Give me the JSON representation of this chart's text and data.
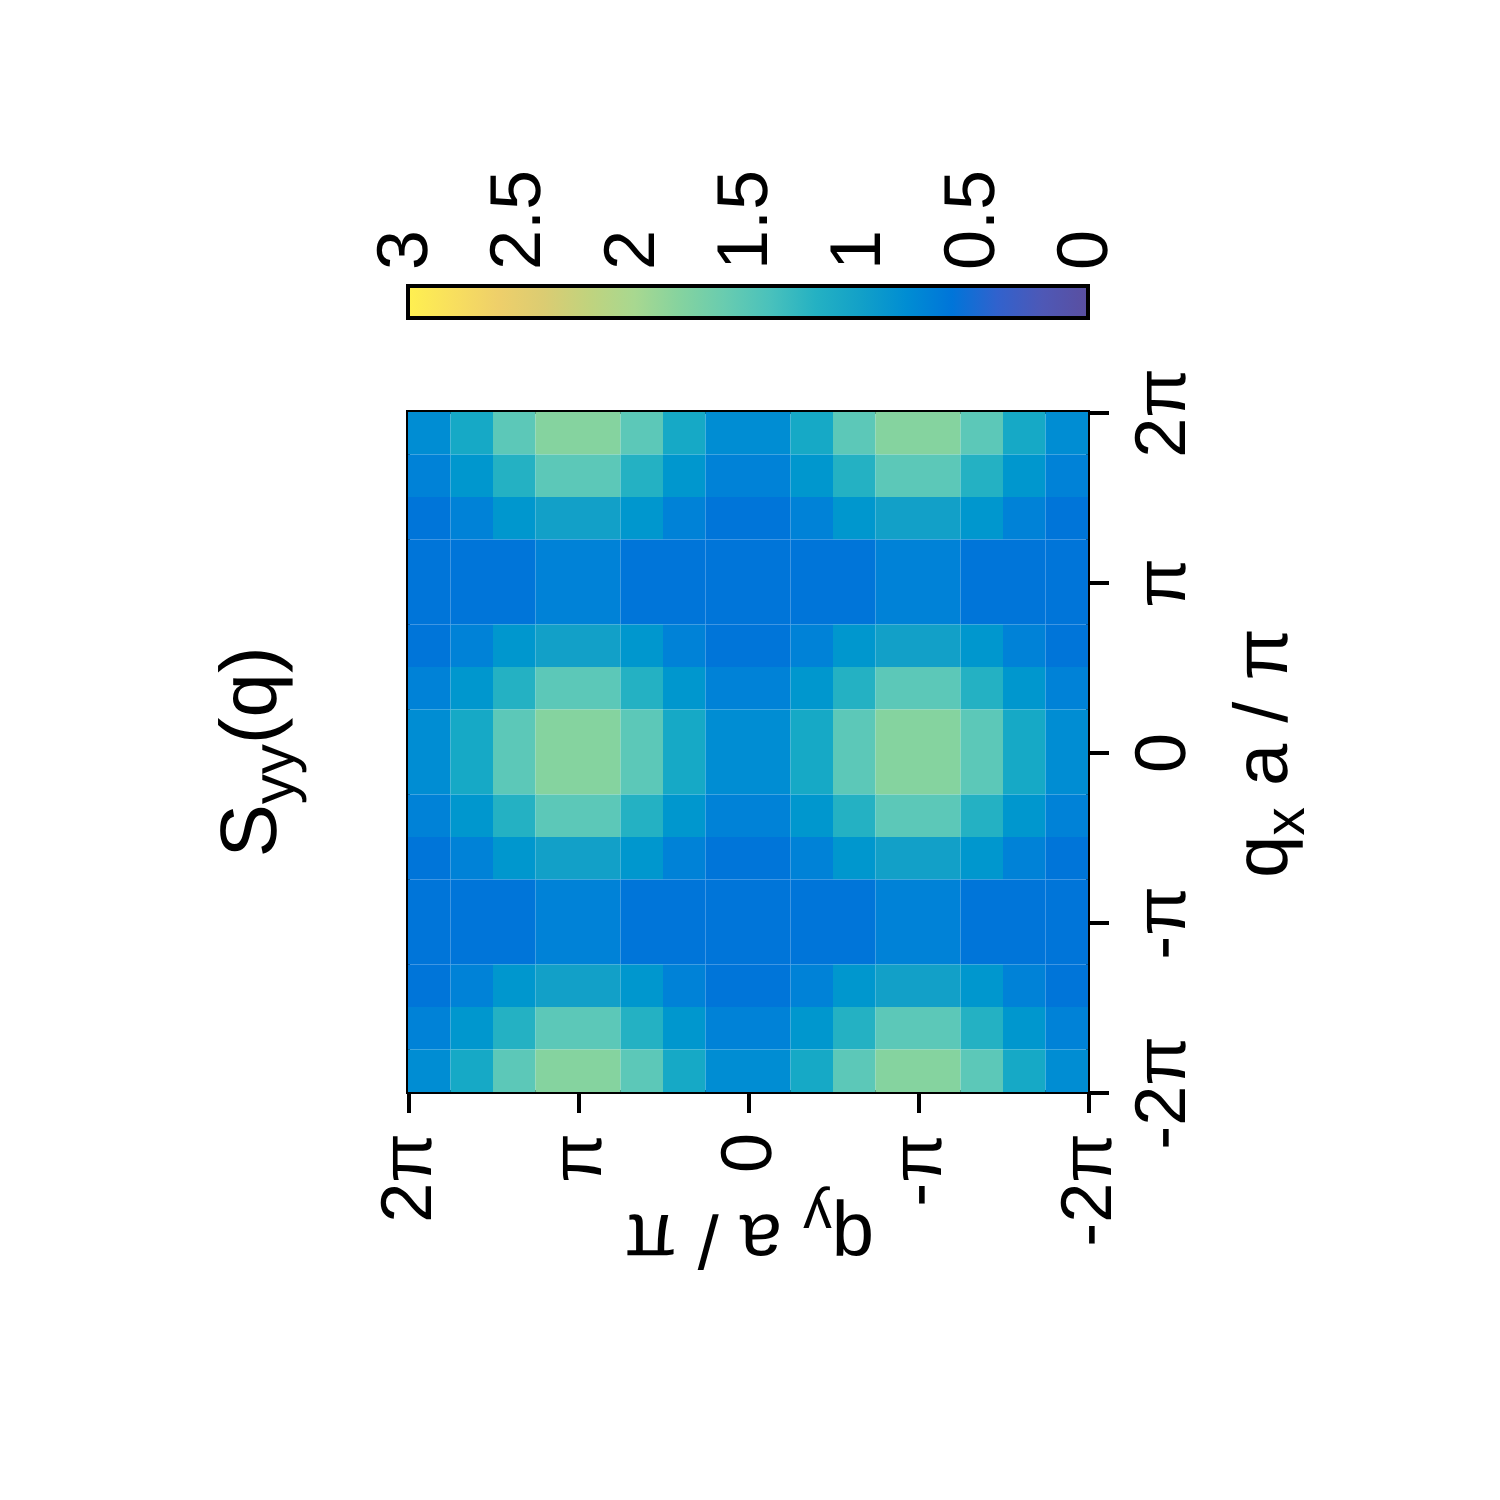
{
  "chart_data": {
    "type": "heatmap",
    "title": "S$_{yy}$(q)",
    "xlabel": "q$_{y}$ a / π",
    "ylabel": "q$_{x}$ a / π",
    "xlim": [
      6.283,
      -6.283
    ],
    "ylim": [
      -6.283,
      6.283
    ],
    "xticks": [
      {
        "value": 6.283,
        "label": "2π"
      },
      {
        "value": 3.142,
        "label": "π"
      },
      {
        "value": 0,
        "label": "0"
      },
      {
        "value": -3.142,
        "label": "-π"
      },
      {
        "value": -6.283,
        "label": "-2π"
      }
    ],
    "yticks": [
      {
        "value": -6.283,
        "label": "-2π"
      },
      {
        "value": -3.142,
        "label": "-π"
      },
      {
        "value": 0,
        "label": "0"
      },
      {
        "value": 3.142,
        "label": "π"
      },
      {
        "value": 6.283,
        "label": "2π"
      }
    ],
    "cticks": [
      0,
      0.5,
      1,
      1.5,
      2,
      2.5,
      3
    ],
    "colors": [
      "#5a4fa0",
      "#0868d8",
      "#12a0c8",
      "#5cc8b8",
      "#a8d890",
      "#e8c870",
      "#fff050"
    ],
    "clim": [
      0,
      3
    ],
    "cells": [
      [
        0.8,
        1.1,
        1.5,
        1.8,
        1.8,
        1.5,
        1.1,
        0.8,
        0.8,
        1.1,
        1.5,
        1.8,
        1.8,
        1.5,
        1.1,
        0.8
      ],
      [
        0.7,
        0.9,
        1.2,
        1.5,
        1.5,
        1.2,
        0.9,
        0.7,
        0.7,
        0.9,
        1.2,
        1.5,
        1.5,
        1.2,
        0.9,
        0.7
      ],
      [
        0.6,
        0.7,
        0.9,
        1.0,
        1.0,
        0.9,
        0.7,
        0.6,
        0.6,
        0.7,
        0.9,
        1.0,
        1.0,
        0.9,
        0.7,
        0.6
      ],
      [
        0.6,
        0.6,
        0.6,
        0.7,
        0.7,
        0.6,
        0.6,
        0.6,
        0.6,
        0.6,
        0.6,
        0.7,
        0.7,
        0.6,
        0.6,
        0.6
      ],
      [
        0.6,
        0.6,
        0.6,
        0.7,
        0.7,
        0.6,
        0.6,
        0.6,
        0.6,
        0.6,
        0.6,
        0.7,
        0.7,
        0.6,
        0.6,
        0.6
      ],
      [
        0.6,
        0.7,
        0.9,
        1.0,
        1.0,
        0.9,
        0.7,
        0.6,
        0.6,
        0.7,
        0.9,
        1.0,
        1.0,
        0.9,
        0.7,
        0.6
      ],
      [
        0.7,
        0.9,
        1.2,
        1.5,
        1.5,
        1.2,
        0.9,
        0.7,
        0.7,
        0.9,
        1.2,
        1.5,
        1.5,
        1.2,
        0.9,
        0.7
      ],
      [
        0.8,
        1.1,
        1.5,
        1.8,
        1.8,
        1.5,
        1.1,
        0.8,
        0.8,
        1.1,
        1.5,
        1.8,
        1.8,
        1.5,
        1.1,
        0.8
      ],
      [
        0.8,
        1.1,
        1.5,
        1.8,
        1.8,
        1.5,
        1.1,
        0.8,
        0.8,
        1.1,
        1.5,
        1.8,
        1.8,
        1.5,
        1.1,
        0.8
      ],
      [
        0.7,
        0.9,
        1.2,
        1.5,
        1.5,
        1.2,
        0.9,
        0.7,
        0.7,
        0.9,
        1.2,
        1.5,
        1.5,
        1.2,
        0.9,
        0.7
      ],
      [
        0.6,
        0.7,
        0.9,
        1.0,
        1.0,
        0.9,
        0.7,
        0.6,
        0.6,
        0.7,
        0.9,
        1.0,
        1.0,
        0.9,
        0.7,
        0.6
      ],
      [
        0.6,
        0.6,
        0.6,
        0.7,
        0.7,
        0.6,
        0.6,
        0.6,
        0.6,
        0.6,
        0.6,
        0.7,
        0.7,
        0.6,
        0.6,
        0.6
      ],
      [
        0.6,
        0.6,
        0.6,
        0.7,
        0.7,
        0.6,
        0.6,
        0.6,
        0.6,
        0.6,
        0.6,
        0.7,
        0.7,
        0.6,
        0.6,
        0.6
      ],
      [
        0.6,
        0.7,
        0.9,
        1.0,
        1.0,
        0.9,
        0.7,
        0.6,
        0.6,
        0.7,
        0.9,
        1.0,
        1.0,
        0.9,
        0.7,
        0.6
      ],
      [
        0.7,
        0.9,
        1.2,
        1.5,
        1.5,
        1.2,
        0.9,
        0.7,
        0.7,
        0.9,
        1.2,
        1.5,
        1.5,
        1.2,
        0.9,
        0.7
      ],
      [
        0.8,
        1.1,
        1.5,
        1.8,
        1.8,
        1.5,
        1.1,
        0.8,
        0.8,
        1.1,
        1.5,
        1.8,
        1.8,
        1.5,
        1.1,
        0.8
      ]
    ]
  }
}
